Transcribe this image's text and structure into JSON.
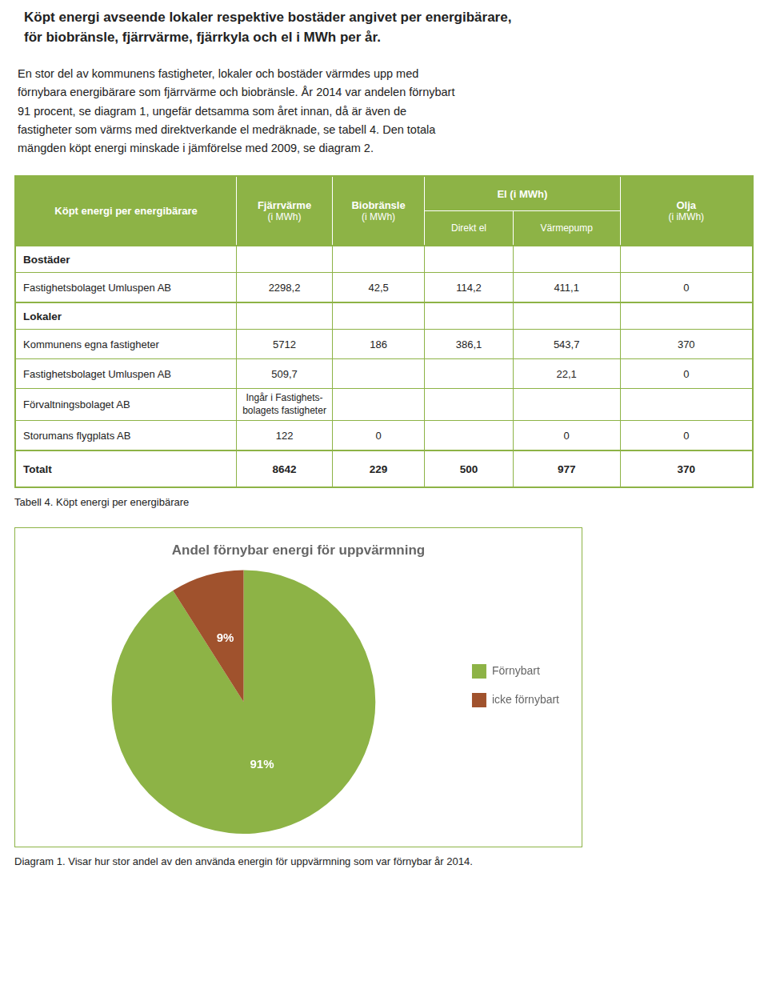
{
  "heading": "Köpt energi avseende lokaler respektive bostäder angivet per energibärare,\nför biobränsle, fjärrvärme, fjärrkyla och el i MWh per år.",
  "paragraph": [
    "En stor del av kommunens fastigheter, lokaler och bostäder värmdes upp med",
    "förnybara energibärare som fjärrvärme och biobränsle. År 2014 var andelen förnybart",
    "91 procent, se diagram 1, ungefär detsamma som året innan, då är även de",
    "fastigheter som värms med direktverkande el medräknade, se tabell 4. Den totala",
    "mängden köpt energi minskade i jämförelse med 2009, se diagram 2."
  ],
  "table": {
    "header_color": "#8db346",
    "header_text_color": "#ffffff",
    "border_color": "#8db346",
    "header": [
      {
        "label": "Köpt energi per energibärare"
      },
      {
        "label": "Fjärrvärme",
        "unit": "(i MWh)"
      },
      {
        "label": "Biobränsle",
        "unit": "(i MWh)"
      },
      {
        "label": "El (i MWh)",
        "sub": [
          "Direkt el",
          "Värmepump"
        ]
      },
      {
        "label": "Olja",
        "unit": "(i iMWh)"
      }
    ],
    "rows": [
      {
        "section": "Bostäder"
      },
      {
        "cells": [
          "Fastighetsbolaget Umluspen AB",
          "2298,2",
          "42,5",
          "114,2",
          "411,1",
          "0"
        ]
      },
      {
        "section": "Lokaler"
      },
      {
        "cells": [
          "Kommunens egna fastigheter",
          "5712",
          "186",
          "386,1",
          "543,7",
          "370"
        ]
      },
      {
        "cells": [
          "Fastighetsbolaget Umluspen AB",
          "509,7",
          null,
          null,
          "22,1",
          "0"
        ]
      },
      {
        "cells": [
          "Förvaltningsbolaget AB",
          "Ingår i Fastighets-\nbolagets fastigheter",
          null,
          null,
          null,
          null
        ]
      },
      {
        "cells": [
          "Storumans flygplats AB",
          "122",
          "0",
          null,
          "0",
          "0"
        ]
      },
      {
        "total": true,
        "cells": [
          "Totalt",
          "8642",
          "229",
          "500",
          "977",
          "370"
        ]
      }
    ],
    "caption": "Tabell 4. Köpt energi per energibärare"
  },
  "chart_data": {
    "type": "pie",
    "title": "Andel förnybar energi för uppvärmning",
    "categories": [
      "Förnybart",
      "icke förnybart"
    ],
    "values": [
      91,
      9
    ],
    "value_labels": [
      "91%",
      "9%"
    ],
    "colors": [
      "#8db346",
      "#a0522d"
    ],
    "data_labels": true,
    "legend": "right"
  },
  "chart_caption": "Diagram 1. Visar hur stor andel av den använda energin för uppvärmning som var förnybar år 2014."
}
